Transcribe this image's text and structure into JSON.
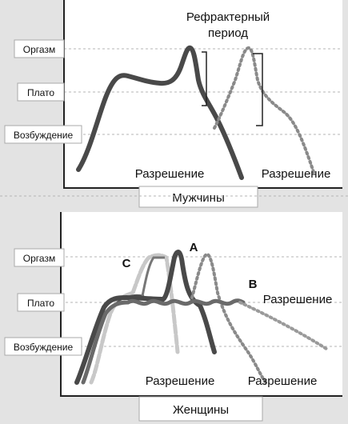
{
  "men_panel": {
    "levels": {
      "orgasm": "Оргазм",
      "plateau": "Плато",
      "excitement": "Возбуждение"
    },
    "refractory_label_line1": "Рефрактерный",
    "refractory_label_line2": "период",
    "resolution_1": "Разрешение",
    "resolution_2": "Разрешение",
    "caption": "Мужчины"
  },
  "women_panel": {
    "levels": {
      "orgasm": "Оргазм",
      "plateau": "Плато",
      "excitement": "Возбуждение"
    },
    "curve_a": "A",
    "curve_b": "B",
    "curve_c": "C",
    "resolution_b": "Разрешение",
    "resolution_1": "Разрешение",
    "resolution_2": "Разрешение",
    "caption": "Женщины"
  },
  "colors": {
    "background": "#e3e3e3",
    "plot_area": "#ffffff",
    "curve_dark": "#4a4a4a",
    "curve_dotted": "#8a8a8a",
    "curve_light": "#c8c8c8"
  }
}
